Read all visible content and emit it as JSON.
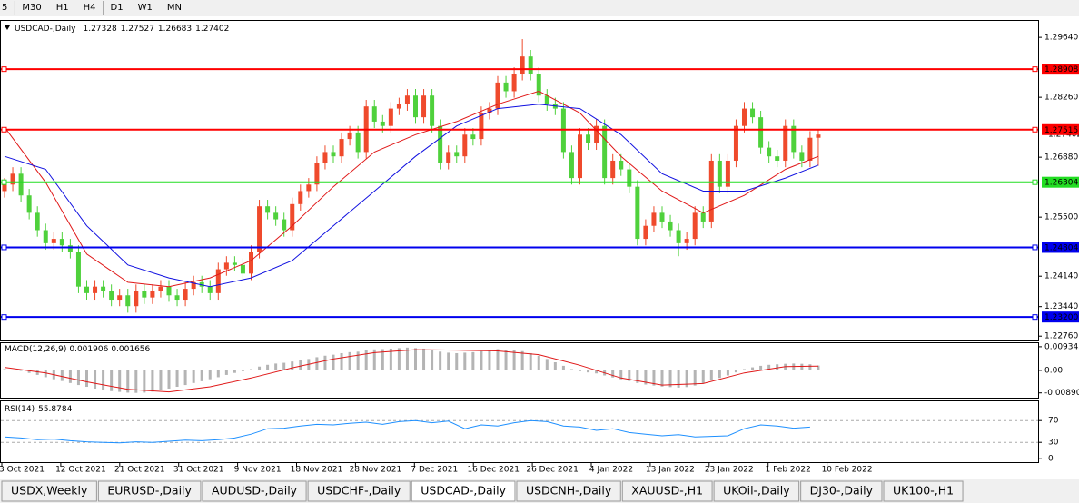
{
  "toolbar": {
    "timeframes": [
      "5",
      "M30",
      "H1",
      "H4",
      "D1",
      "W1",
      "MN"
    ]
  },
  "chart": {
    "type": "candlestick",
    "symbol": "USDCAD-,Daily",
    "ohlc": [
      1.27328,
      1.27527,
      1.26683,
      1.27402
    ],
    "colors": {
      "up": "#ef4a2c",
      "down": "#4fd13c"
    },
    "ylim": [
      1.2266,
      1.3004
    ],
    "yticks": [
      {
        "value": 1.2964,
        "label": "1.29640"
      },
      {
        "value": 1.2826,
        "label": "1.28260"
      },
      {
        "value": 1.2688,
        "label": "1.26880"
      },
      {
        "value": 1.255,
        "label": "1.25500"
      },
      {
        "value": 1.2414,
        "label": "1.24140"
      },
      {
        "value": 1.2344,
        "label": "1.23440"
      },
      {
        "value": 1.2276,
        "label": "1.22760"
      }
    ],
    "current_price": 1.27402,
    "levels": [
      {
        "value": 1.28908,
        "color": "#ff0000"
      },
      {
        "value": 1.27515,
        "color": "#ff0000"
      },
      {
        "value": 1.26304,
        "color": "#22dd22"
      },
      {
        "value": 1.24804,
        "color": "#0000ee"
      },
      {
        "value": {
          "value": 1.232,
          "label": "1.23200"
        },
        "color": "#0000ee"
      }
    ],
    "candles": {
      "open": [
        1.261,
        1.2625,
        1.265,
        1.26,
        1.256,
        1.252,
        1.249,
        1.25,
        1.2485,
        1.247,
        1.239,
        1.2375,
        1.239,
        1.238,
        1.236,
        1.237,
        1.2345,
        1.238,
        1.2365,
        1.238,
        1.239,
        1.237,
        1.236,
        1.2385,
        1.24,
        1.239,
        1.2375,
        1.243,
        1.2445,
        1.244,
        1.242,
        1.247,
        1.2575,
        1.256,
        1.2545,
        1.252,
        1.258,
        1.261,
        1.2625,
        1.2675,
        1.27,
        1.269,
        1.273,
        1.2745,
        1.27,
        1.2805,
        1.277,
        1.276,
        1.28,
        1.281,
        1.283,
        1.278,
        1.283,
        1.276,
        1.2675,
        1.27,
        1.269,
        1.274,
        1.273,
        1.279,
        1.28,
        1.286,
        1.284,
        1.288,
        1.292,
        1.288,
        1.283,
        1.281,
        1.28,
        1.27,
        1.264,
        1.274,
        1.272,
        1.276,
        1.264,
        1.268,
        1.266,
        1.262,
        1.25,
        1.253,
        1.256,
        1.254,
        1.252,
        1.249,
        1.25,
        1.256,
        1.254,
        1.268,
        1.262,
        1.268,
        1.276,
        1.28,
        1.278,
        1.271,
        1.269,
        1.268,
        1.276,
        1.27,
        1.268,
        1.27328
      ],
      "high": [
        1.264,
        1.2665,
        1.2665,
        1.2615,
        1.2575,
        1.2535,
        1.2515,
        1.2515,
        1.25,
        1.2485,
        1.2405,
        1.2405,
        1.2405,
        1.2395,
        1.2385,
        1.2385,
        1.2395,
        1.2395,
        1.2395,
        1.2405,
        1.2405,
        1.2385,
        1.24,
        1.2415,
        1.2415,
        1.2405,
        1.2445,
        1.246,
        1.246,
        1.2455,
        1.2485,
        1.259,
        1.259,
        1.2575,
        1.256,
        1.2595,
        1.2625,
        1.264,
        1.269,
        1.2715,
        1.2715,
        1.2745,
        1.276,
        1.276,
        1.282,
        1.282,
        1.2785,
        1.2815,
        1.2825,
        1.2845,
        1.2845,
        1.2845,
        1.2845,
        1.2775,
        1.2715,
        1.2715,
        1.2755,
        1.2755,
        1.2805,
        1.2815,
        1.2875,
        1.2875,
        1.2895,
        1.296,
        1.2935,
        1.2895,
        1.2845,
        1.2825,
        1.2815,
        1.2715,
        1.2755,
        1.2755,
        1.2775,
        1.2775,
        1.2695,
        1.2695,
        1.2675,
        1.2635,
        1.2545,
        1.2575,
        1.2575,
        1.2555,
        1.2535,
        1.2515,
        1.2575,
        1.2575,
        1.2695,
        1.2695,
        1.2695,
        1.2775,
        1.2815,
        1.2815,
        1.2795,
        1.2725,
        1.2705,
        1.2775,
        1.2775,
        1.2715,
        1.2748,
        1.27527
      ],
      "low": [
        1.2595,
        1.261,
        1.2585,
        1.2545,
        1.2505,
        1.2475,
        1.2475,
        1.247,
        1.2455,
        1.2375,
        1.236,
        1.236,
        1.2365,
        1.2345,
        1.2345,
        1.233,
        1.233,
        1.235,
        1.235,
        1.2365,
        1.2355,
        1.2345,
        1.2345,
        1.237,
        1.2375,
        1.236,
        1.236,
        1.2415,
        1.2425,
        1.2405,
        1.2405,
        1.2455,
        1.2545,
        1.253,
        1.2505,
        1.2505,
        1.2565,
        1.2595,
        1.261,
        1.266,
        1.2675,
        1.2675,
        1.2715,
        1.2685,
        1.2685,
        1.2755,
        1.2745,
        1.2745,
        1.2785,
        1.2795,
        1.2765,
        1.2765,
        1.2745,
        1.266,
        1.266,
        1.2675,
        1.2675,
        1.2715,
        1.2715,
        1.2775,
        1.2785,
        1.2825,
        1.2825,
        1.2865,
        1.2865,
        1.2815,
        1.2795,
        1.2785,
        1.2685,
        1.2625,
        1.2625,
        1.2705,
        1.2705,
        1.2625,
        1.2625,
        1.2645,
        1.2605,
        1.2485,
        1.2485,
        1.2515,
        1.2525,
        1.2505,
        1.246,
        1.2475,
        1.2485,
        1.2525,
        1.2525,
        1.2605,
        1.2605,
        1.2665,
        1.2745,
        1.2765,
        1.2695,
        1.2675,
        1.2665,
        1.2665,
        1.2685,
        1.2665,
        1.2665,
        1.26683
      ],
      "close": [
        1.2625,
        1.265,
        1.26,
        1.256,
        1.252,
        1.249,
        1.25,
        1.2485,
        1.247,
        1.239,
        1.2375,
        1.239,
        1.238,
        1.236,
        1.237,
        1.2345,
        1.238,
        1.2365,
        1.238,
        1.239,
        1.237,
        1.236,
        1.2385,
        1.24,
        1.239,
        1.2375,
        1.243,
        1.2445,
        1.244,
        1.242,
        1.247,
        1.2575,
        1.256,
        1.2545,
        1.252,
        1.258,
        1.261,
        1.2625,
        1.2675,
        1.27,
        1.269,
        1.273,
        1.2745,
        1.27,
        1.2805,
        1.277,
        1.276,
        1.28,
        1.281,
        1.283,
        1.278,
        1.283,
        1.276,
        1.2675,
        1.27,
        1.269,
        1.274,
        1.273,
        1.279,
        1.28,
        1.286,
        1.284,
        1.288,
        1.292,
        1.288,
        1.283,
        1.281,
        1.28,
        1.27,
        1.264,
        1.274,
        1.272,
        1.276,
        1.264,
        1.268,
        1.266,
        1.262,
        1.25,
        1.253,
        1.256,
        1.254,
        1.252,
        1.249,
        1.25,
        1.256,
        1.254,
        1.268,
        1.262,
        1.268,
        1.276,
        1.28,
        1.278,
        1.271,
        1.269,
        1.268,
        1.276,
        1.27,
        1.268,
        1.27328,
        1.27402
      ]
    },
    "ma": [
      {
        "color": "#e01818",
        "x": [
          0,
          5,
          10,
          15,
          20,
          25,
          30,
          35,
          40,
          45,
          50,
          55,
          60,
          65,
          70,
          75,
          80,
          85,
          90,
          95,
          99
        ],
        "values": [
          1.2757,
          1.263,
          1.2465,
          1.24,
          1.239,
          1.241,
          1.245,
          1.253,
          1.262,
          1.27,
          1.274,
          1.277,
          1.281,
          1.284,
          1.279,
          1.269,
          1.261,
          1.256,
          1.26,
          1.266,
          1.269
        ]
      },
      {
        "color": "#1010e0",
        "x": [
          0,
          5,
          10,
          15,
          20,
          25,
          30,
          35,
          40,
          45,
          50,
          55,
          60,
          65,
          70,
          75,
          80,
          85,
          90,
          95,
          99
        ],
        "values": [
          1.269,
          1.266,
          1.253,
          1.244,
          1.241,
          1.239,
          1.241,
          1.245,
          1.253,
          1.261,
          1.269,
          1.276,
          1.28,
          1.281,
          1.28,
          1.274,
          1.265,
          1.261,
          1.261,
          1.264,
          1.267
        ]
      }
    ],
    "dates": [
      "3 Oct 2021",
      "12 Oct 2021",
      "21 Oct 2021",
      "31 Oct 2021",
      "9 Nov 2021",
      "18 Nov 2021",
      "28 Nov 2021",
      "7 Dec 2021",
      "16 Dec 2021",
      "26 Dec 2021",
      "4 Jan 2022",
      "13 Jan 2022",
      "23 Jan 2022",
      "1 Feb 2022",
      "10 Feb 2022"
    ],
    "macd": {
      "label": "MACD(12,26,9)",
      "readings": [
        0.001906,
        0.001656
      ],
      "ylim": [
        -0.0108,
        0.0111
      ],
      "yticks": [
        0.009345,
        {
          "value": 0,
          "label": "0.00"
        },
        {
          "value": -0.0089,
          "label": "-0.00890"
        }
      ],
      "hist_color": "#b4b4b4",
      "signal_color": "#e01818",
      "hist": [
        0.0005,
        0.0003,
        -0.0002,
        -0.001,
        -0.0018,
        -0.0027,
        -0.0035,
        -0.0042,
        -0.005,
        -0.0058,
        -0.0065,
        -0.0072,
        -0.0078,
        -0.0082,
        -0.0085,
        -0.0088,
        -0.0089,
        -0.0088,
        -0.0084,
        -0.0078,
        -0.0072,
        -0.0065,
        -0.0058,
        -0.005,
        -0.0043,
        -0.0035,
        -0.0027,
        -0.0018,
        -0.001,
        -0.0003,
        0.0005,
        0.0015,
        0.0022,
        0.0027,
        0.003,
        0.0035,
        0.004,
        0.0045,
        0.0052,
        0.0058,
        0.0062,
        0.0068,
        0.0072,
        0.0074,
        0.008,
        0.0083,
        0.0084,
        0.0086,
        0.0088,
        0.009,
        0.0088,
        0.0086,
        0.0082,
        0.0074,
        0.007,
        0.0068,
        0.007,
        0.0072,
        0.0076,
        0.008,
        0.0084,
        0.0082,
        0.008,
        0.0076,
        0.0068,
        0.0058,
        0.0045,
        0.0032,
        0.0018,
        0.0005,
        -0.0003,
        -0.0008,
        -0.0012,
        -0.002,
        -0.0028,
        -0.0035,
        -0.0042,
        -0.005,
        -0.0056,
        -0.006,
        -0.0064,
        -0.0066,
        -0.0068,
        -0.0066,
        -0.006,
        -0.0052,
        -0.004,
        -0.003,
        -0.002,
        -0.0008,
        0.0005,
        0.0012,
        0.0018,
        0.0022,
        0.0024,
        0.0026,
        0.0027,
        0.0026,
        0.0024,
        0.0019
      ],
      "signal_x": [
        0,
        5,
        10,
        15,
        20,
        25,
        30,
        35,
        40,
        45,
        50,
        55,
        60,
        65,
        70,
        75,
        80,
        85,
        90,
        95,
        99
      ],
      "signal": [
        0.0012,
        -0.001,
        -0.0045,
        -0.0075,
        -0.0085,
        -0.0065,
        -0.003,
        0.001,
        0.0045,
        0.007,
        0.0082,
        0.008,
        0.0077,
        0.0062,
        0.002,
        -0.003,
        -0.0058,
        -0.0052,
        -0.001,
        0.0015,
        0.0017
      ]
    },
    "rsi": {
      "label": "RSI(14)",
      "reading": 55.8784,
      "ylim": [
        -8,
        107
      ],
      "yticks": [
        70,
        30,
        0
      ],
      "color": "#1e90ff",
      "x": [
        0,
        2,
        4,
        6,
        8,
        10,
        12,
        14,
        16,
        18,
        20,
        22,
        24,
        26,
        28,
        30,
        32,
        34,
        36,
        38,
        40,
        42,
        44,
        46,
        48,
        50,
        52,
        54,
        56,
        58,
        60,
        62,
        64,
        66,
        68,
        70,
        72,
        74,
        76,
        78,
        80,
        82,
        84,
        86,
        88,
        90,
        92,
        94,
        96,
        98
      ],
      "values": [
        40,
        38,
        35,
        36,
        33,
        31,
        30,
        29,
        31,
        30,
        32,
        34,
        33,
        35,
        38,
        45,
        55,
        56,
        60,
        63,
        62,
        65,
        67,
        63,
        68,
        70,
        66,
        69,
        55,
        62,
        60,
        66,
        70,
        68,
        60,
        58,
        52,
        55,
        48,
        45,
        42,
        44,
        40,
        41,
        42,
        55,
        62,
        60,
        56,
        58
      ]
    }
  },
  "tabs": {
    "items": [
      "USDX,Weekly",
      "EURUSD-,Daily",
      "AUDUSD-,Daily",
      "USDCHF-,Daily",
      "USDCAD-,Daily",
      "USDCNH-,Daily",
      "XAUUSD-,H1",
      "UKOil-,Daily",
      "DJ30-,Daily",
      "UK100-,H1"
    ],
    "active": 4
  }
}
